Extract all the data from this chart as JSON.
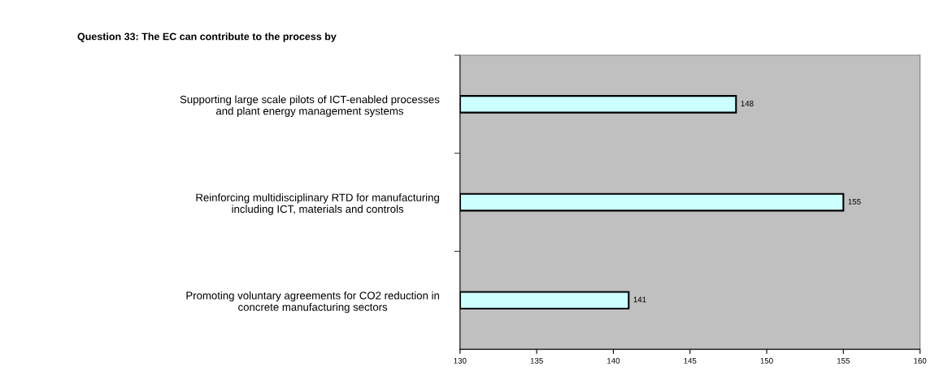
{
  "chart_data": {
    "type": "bar",
    "orientation": "horizontal",
    "title": "Question 33: The EC can contribute to the process by",
    "categories": [
      "Supporting large scale pilots of ICT-enabled processes\nand plant energy management systems",
      "Reinforcing multidisciplinary RTD for manufacturing\nincluding ICT, materials and controls",
      "Promoting voluntary agreements for CO2 reduction in\nconcrete manufacturing sectors"
    ],
    "values": [
      148,
      155,
      141
    ],
    "color": "#ccffff",
    "xlim": [
      130,
      160
    ],
    "xticks": [
      130,
      135,
      140,
      145,
      150,
      155,
      160
    ],
    "data_labels": true,
    "grid": false,
    "legend": false
  }
}
